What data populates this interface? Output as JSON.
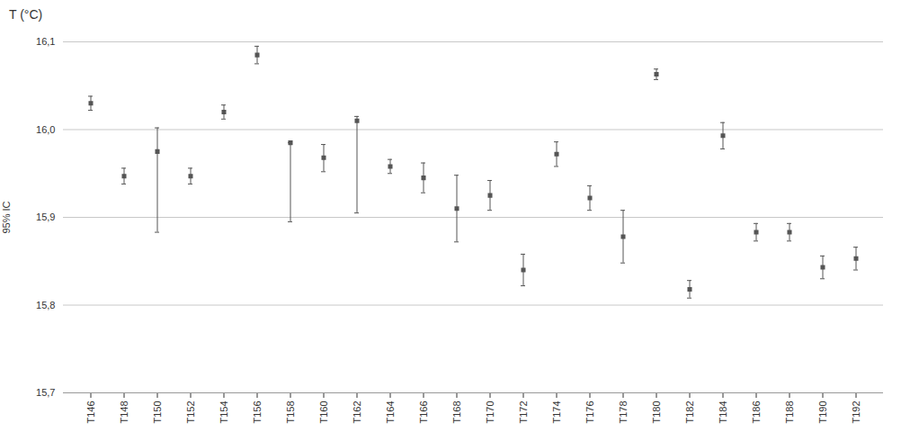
{
  "chart_data": {
    "type": "errorbar",
    "title": "T (°C)",
    "categories": [
      "T146",
      "T148",
      "T150",
      "T152",
      "T154",
      "T156",
      "T158",
      "T160",
      "T162",
      "T164",
      "T166",
      "T168",
      "T170",
      "T172",
      "T174",
      "T176",
      "T178",
      "T180",
      "T182",
      "T184",
      "T186",
      "T188",
      "T190",
      "T192"
    ],
    "values": [
      16.03,
      15.947,
      15.975,
      15.947,
      16.02,
      16.085,
      15.985,
      15.968,
      16.01,
      15.958,
      15.945,
      15.91,
      15.925,
      15.84,
      15.972,
      15.922,
      15.878,
      16.063,
      15.818,
      15.993,
      15.883,
      15.883,
      15.843,
      15.853
    ],
    "lower": [
      16.022,
      15.938,
      15.883,
      15.938,
      16.012,
      16.075,
      15.895,
      15.952,
      15.905,
      15.95,
      15.928,
      15.872,
      15.908,
      15.822,
      15.958,
      15.908,
      15.848,
      16.057,
      15.808,
      15.978,
      15.873,
      15.873,
      15.83,
      15.84
    ],
    "upper": [
      16.038,
      15.956,
      16.002,
      15.956,
      16.028,
      16.095,
      15.985,
      15.983,
      16.015,
      15.966,
      15.962,
      15.948,
      15.942,
      15.858,
      15.986,
      15.936,
      15.908,
      16.069,
      15.828,
      16.008,
      15.893,
      15.893,
      15.856,
      15.866
    ],
    "ylabel": "95% IC",
    "ylim": [
      15.7,
      16.1
    ],
    "yticks": [
      {
        "value": 15.7,
        "label": "15,7"
      },
      {
        "value": 15.8,
        "label": "15,8"
      },
      {
        "value": 15.9,
        "label": "15,9"
      },
      {
        "value": 16.0,
        "label": "16,0"
      },
      {
        "value": 16.1,
        "label": "16,1"
      }
    ],
    "color": "#555555",
    "grid": true,
    "marker": "square"
  }
}
